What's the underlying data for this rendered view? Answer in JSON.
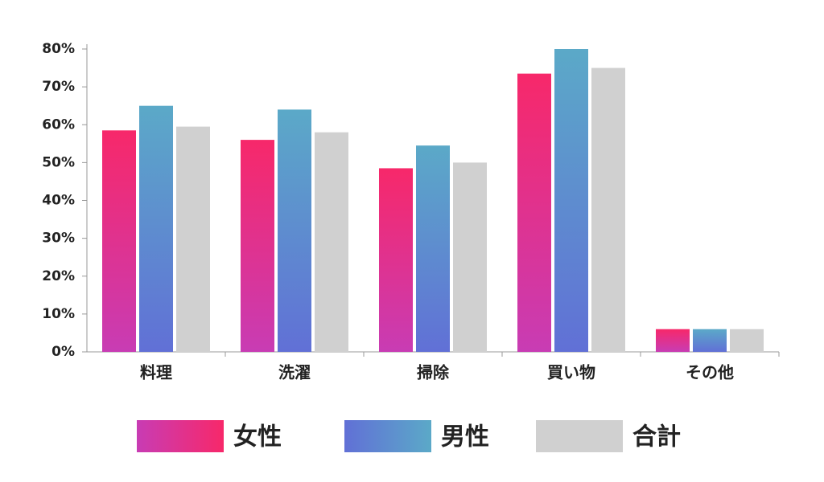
{
  "chart_data": {
    "type": "bar",
    "categories": [
      "料理",
      "洗濯",
      "掃除",
      "買い物",
      "その他"
    ],
    "series": [
      {
        "name": "女性",
        "color": "#f7286a",
        "gradient": [
          "#f7286a",
          "#c83cb4"
        ],
        "values": [
          58.5,
          56,
          48.5,
          73.5,
          6
        ]
      },
      {
        "name": "男性",
        "color": "#5ba9c8",
        "gradient": [
          "#5ba9c8",
          "#6170d6"
        ],
        "values": [
          65,
          64,
          54.5,
          80,
          6
        ]
      },
      {
        "name": "合計",
        "color": "#d0d0d0",
        "values": [
          59.5,
          58,
          50,
          75,
          6
        ]
      }
    ],
    "ylim": [
      0,
      80
    ],
    "yticks": [
      {
        "value": 0,
        "label": "0%"
      },
      {
        "value": 10,
        "label": "10%"
      },
      {
        "value": 20,
        "label": "20%"
      },
      {
        "value": 30,
        "label": "30%"
      },
      {
        "value": 40,
        "label": "40%"
      },
      {
        "value": 50,
        "label": "50%"
      },
      {
        "value": 60,
        "label": "60%"
      },
      {
        "value": 70,
        "label": "70%"
      },
      {
        "value": 80,
        "label": "80%"
      }
    ],
    "grid": false
  }
}
